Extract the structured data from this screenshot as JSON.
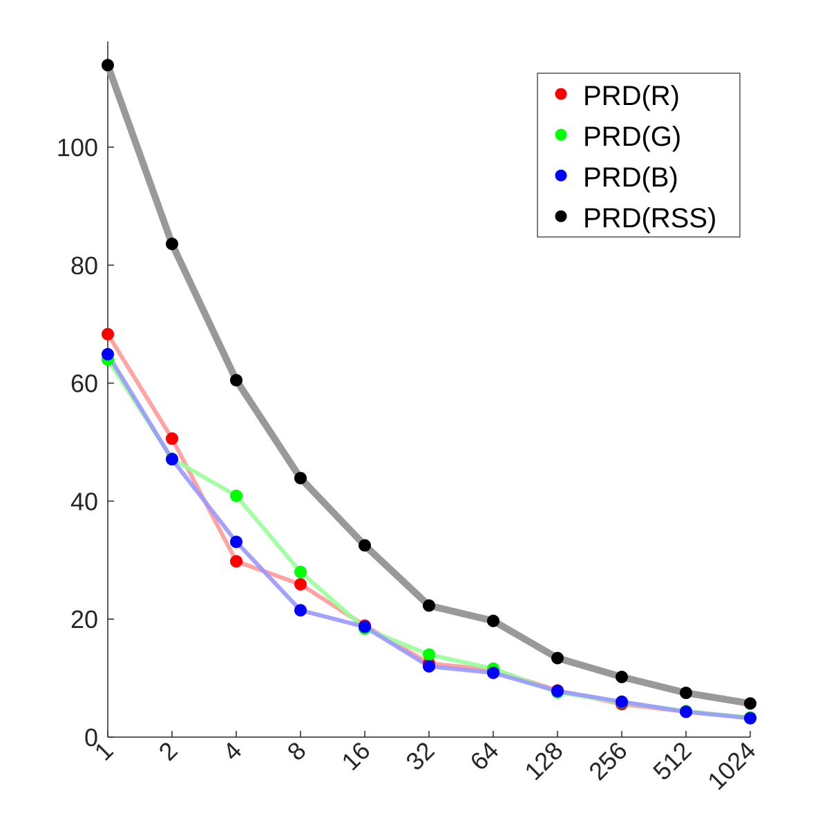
{
  "chart_data": {
    "type": "line",
    "categories": [
      "1",
      "2",
      "4",
      "8",
      "16",
      "32",
      "64",
      "128",
      "256",
      "512",
      "1024"
    ],
    "ylim": [
      0,
      115
    ],
    "yticks": [
      0,
      20,
      40,
      60,
      80,
      100
    ],
    "grid": false,
    "legend_position": "top-right",
    "title": "",
    "xlabel": "",
    "ylabel": "",
    "series": [
      {
        "name": "PRD(R)",
        "marker_color": "#ff0000",
        "line_color": "#ff9999",
        "values": [
          68.3,
          50.6,
          29.8,
          25.9,
          18.9,
          12.5,
          11.4,
          7.9,
          5.6,
          4.3,
          3.3
        ]
      },
      {
        "name": "PRD(G)",
        "marker_color": "#00ff00",
        "line_color": "#99ff99",
        "values": [
          64.0,
          47.2,
          40.9,
          28.0,
          18.4,
          14.0,
          11.6,
          7.6,
          5.9,
          4.4,
          3.3
        ]
      },
      {
        "name": "PRD(B)",
        "marker_color": "#0000ff",
        "line_color": "#9999ff",
        "values": [
          64.9,
          47.1,
          33.1,
          21.5,
          18.7,
          12.0,
          10.9,
          7.8,
          6.0,
          4.3,
          3.2
        ]
      },
      {
        "name": "PRD(RSS)",
        "marker_color": "#000000",
        "line_color": "#999999",
        "values": [
          113.9,
          83.6,
          60.5,
          43.9,
          32.5,
          22.3,
          19.7,
          13.4,
          10.2,
          7.5,
          5.7
        ]
      }
    ]
  }
}
